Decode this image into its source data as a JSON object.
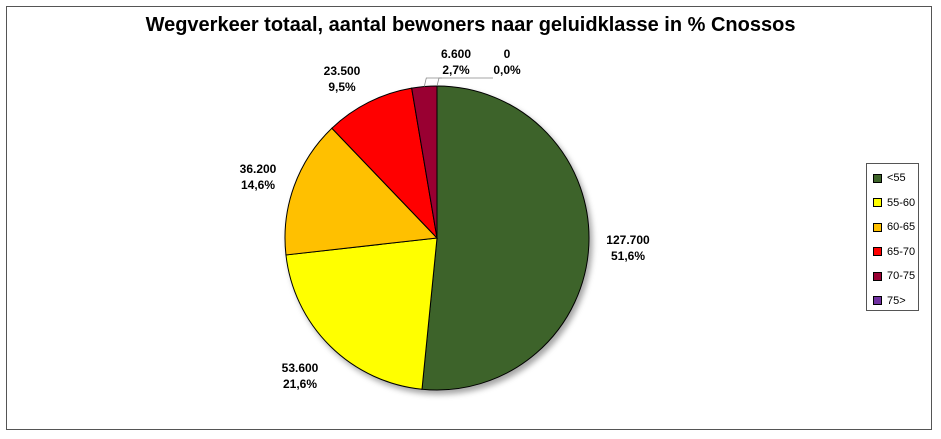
{
  "chart_data": {
    "type": "pie",
    "title": "Wegverkeer totaal, aantal bewoners naar geluidklasse in % Cnossos",
    "slices": [
      {
        "label": "<55",
        "value": 127700,
        "value_text": "127.700",
        "percent_text": "51,6%",
        "color": "#3E6429"
      },
      {
        "label": "55-60",
        "value": 53600,
        "value_text": "53.600",
        "percent_text": "21,6%",
        "color": "#FFFF00"
      },
      {
        "label": "60-65",
        "value": 36200,
        "value_text": "36.200",
        "percent_text": "14,6%",
        "color": "#FFC000"
      },
      {
        "label": "65-70",
        "value": 23500,
        "value_text": "23.500",
        "percent_text": "9,5%",
        "color": "#FF0000"
      },
      {
        "label": "70-75",
        "value": 6600,
        "value_text": "6.600",
        "percent_text": "2,7%",
        "color": "#990033"
      },
      {
        "label": "75>",
        "value": 0,
        "value_text": "0",
        "percent_text": "0,0%",
        "color": "#7030A0"
      }
    ],
    "legend_position": "right"
  }
}
